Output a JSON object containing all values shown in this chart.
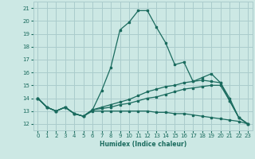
{
  "xlabel": "Humidex (Indice chaleur)",
  "xlim": [
    -0.5,
    23.5
  ],
  "ylim": [
    11.5,
    21.5
  ],
  "yticks": [
    12,
    13,
    14,
    15,
    16,
    17,
    18,
    19,
    20,
    21
  ],
  "xticks": [
    0,
    1,
    2,
    3,
    4,
    5,
    6,
    7,
    8,
    9,
    10,
    11,
    12,
    13,
    14,
    15,
    16,
    17,
    18,
    19,
    20,
    21,
    22,
    23
  ],
  "bg_color": "#cce8e4",
  "grid_color": "#aacccc",
  "line_color": "#1a6b5e",
  "lines": [
    {
      "x": [
        0,
        1,
        2,
        3,
        4,
        5,
        6,
        7,
        8,
        9,
        10,
        11,
        12,
        13,
        14,
        15,
        16,
        17,
        18,
        19,
        20,
        21,
        22,
        23
      ],
      "y": [
        14.0,
        13.3,
        13.0,
        13.3,
        12.8,
        12.6,
        13.1,
        14.6,
        16.4,
        19.3,
        19.9,
        20.8,
        20.8,
        19.5,
        18.3,
        16.6,
        16.8,
        15.3,
        15.6,
        15.9,
        15.2,
        13.8,
        12.5,
        12.0
      ]
    },
    {
      "x": [
        0,
        1,
        2,
        3,
        4,
        5,
        6,
        7,
        8,
        9,
        10,
        11,
        12,
        13,
        14,
        15,
        16,
        17,
        18,
        19,
        20,
        21,
        22,
        23
      ],
      "y": [
        14.0,
        13.3,
        13.0,
        13.3,
        12.8,
        12.6,
        13.1,
        13.3,
        13.5,
        13.7,
        13.9,
        14.2,
        14.5,
        14.7,
        14.9,
        15.0,
        15.2,
        15.3,
        15.4,
        15.3,
        15.2,
        14.0,
        12.5,
        12.0
      ]
    },
    {
      "x": [
        0,
        1,
        2,
        3,
        4,
        5,
        6,
        7,
        8,
        9,
        10,
        11,
        12,
        13,
        14,
        15,
        16,
        17,
        18,
        19,
        20,
        21,
        22,
        23
      ],
      "y": [
        14.0,
        13.3,
        13.0,
        13.3,
        12.8,
        12.6,
        13.1,
        13.2,
        13.3,
        13.5,
        13.6,
        13.8,
        14.0,
        14.1,
        14.3,
        14.5,
        14.7,
        14.8,
        14.9,
        15.0,
        15.0,
        13.8,
        12.5,
        12.0
      ]
    },
    {
      "x": [
        0,
        1,
        2,
        3,
        4,
        5,
        6,
        7,
        8,
        9,
        10,
        11,
        12,
        13,
        14,
        15,
        16,
        17,
        18,
        19,
        20,
        21,
        22,
        23
      ],
      "y": [
        14.0,
        13.3,
        13.0,
        13.3,
        12.8,
        12.6,
        13.0,
        13.0,
        13.0,
        13.0,
        13.0,
        13.0,
        13.0,
        12.9,
        12.9,
        12.8,
        12.8,
        12.7,
        12.6,
        12.5,
        12.4,
        12.3,
        12.2,
        12.0
      ]
    }
  ]
}
